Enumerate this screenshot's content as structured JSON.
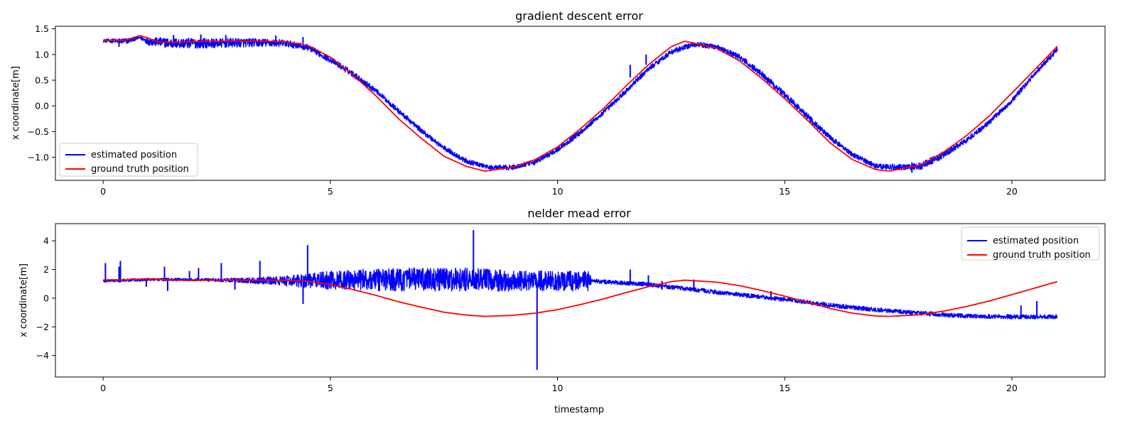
{
  "chart_data": [
    {
      "type": "line",
      "title": "gradient descent error",
      "xlabel": "",
      "ylabel": "x coordinate[m]",
      "xlim": [
        -1.05,
        22.05
      ],
      "ylim": [
        -1.45,
        1.55
      ],
      "xticks": [
        0,
        5,
        10,
        15,
        20
      ],
      "yticks": [
        1.5,
        1.0,
        0.5,
        0.0,
        -0.5,
        -1.0
      ],
      "ytick_labels": [
        "1.5",
        "1.0",
        "0.5",
        "0.0",
        "−0.5",
        "−1.0"
      ],
      "grid": false,
      "legend": {
        "placement": "lower-left",
        "entries": [
          "estimated position",
          "ground truth position"
        ]
      },
      "colors": {
        "estimated": "#0000ff",
        "truth": "#ff0000"
      },
      "series": [
        {
          "name": "estimated position",
          "color": "#0000ff",
          "x": [
            0,
            0.5,
            0.8,
            1.0,
            1.5,
            2.0,
            2.5,
            3.0,
            3.5,
            4.0,
            4.5,
            5.0,
            5.5,
            6.0,
            6.5,
            7.0,
            7.5,
            8.0,
            8.5,
            9.0,
            9.5,
            10.0,
            10.5,
            11.0,
            11.5,
            12.0,
            12.5,
            13.0,
            13.5,
            14.0,
            14.5,
            15.0,
            15.5,
            16.0,
            16.5,
            17.0,
            17.5,
            18.0,
            18.5,
            19.0,
            19.5,
            20.0,
            20.5,
            21.0
          ],
          "y": [
            1.27,
            1.26,
            1.33,
            1.26,
            1.22,
            1.22,
            1.22,
            1.23,
            1.23,
            1.22,
            1.14,
            0.9,
            0.62,
            0.3,
            -0.1,
            -0.48,
            -0.82,
            -1.08,
            -1.2,
            -1.2,
            -1.1,
            -0.85,
            -0.52,
            -0.14,
            0.28,
            0.72,
            1.05,
            1.2,
            1.15,
            0.95,
            0.62,
            0.22,
            -0.2,
            -0.62,
            -0.95,
            -1.17,
            -1.2,
            -1.17,
            -0.95,
            -0.67,
            -0.32,
            0.1,
            0.62,
            1.1
          ],
          "noise": [
            0.03,
            0.06,
            0.03,
            0.08,
            0.1,
            0.1,
            0.09,
            0.09,
            0.08,
            0.07,
            0.06,
            0.06,
            0.06,
            0.05,
            0.05,
            0.05,
            0.05,
            0.05,
            0.04,
            0.05,
            0.05,
            0.05,
            0.05,
            0.05,
            0.05,
            0.05,
            0.05,
            0.05,
            0.05,
            0.06,
            0.06,
            0.06,
            0.06,
            0.05,
            0.05,
            0.05,
            0.06,
            0.07,
            0.07,
            0.05,
            0.05,
            0.05,
            0.05,
            0.05
          ]
        },
        {
          "name": "ground truth position",
          "color": "#ff0000",
          "x": [
            0,
            0.5,
            0.65,
            0.8,
            1.0,
            1.2,
            1.5,
            2.0,
            2.5,
            3.0,
            3.5,
            4.0,
            4.5,
            5.0,
            5.5,
            6.0,
            6.5,
            7.0,
            7.5,
            8.0,
            8.4,
            9.0,
            9.5,
            10.0,
            10.5,
            11.0,
            11.5,
            12.0,
            12.5,
            12.8,
            13.5,
            14.0,
            14.5,
            15.0,
            15.5,
            16.0,
            16.5,
            17.0,
            17.3,
            18.0,
            18.5,
            19.0,
            19.5,
            20.0,
            20.5,
            21.0
          ],
          "y": [
            1.27,
            1.28,
            1.32,
            1.37,
            1.32,
            1.24,
            1.24,
            1.25,
            1.26,
            1.26,
            1.26,
            1.25,
            1.18,
            0.95,
            0.6,
            0.2,
            -0.25,
            -0.63,
            -0.98,
            -1.18,
            -1.27,
            -1.2,
            -1.05,
            -0.8,
            -0.45,
            -0.06,
            0.38,
            0.8,
            1.15,
            1.26,
            1.12,
            0.88,
            0.53,
            0.14,
            -0.28,
            -0.72,
            -1.05,
            -1.24,
            -1.27,
            -1.15,
            -0.9,
            -0.58,
            -0.2,
            0.25,
            0.7,
            1.16
          ]
        }
      ],
      "spikes": [
        {
          "x": 0.35,
          "ylow": 1.15,
          "yhigh": 1.3
        },
        {
          "x": 1.55,
          "ylow": 1.22,
          "yhigh": 1.38
        },
        {
          "x": 2.15,
          "ylow": 1.22,
          "yhigh": 1.39
        },
        {
          "x": 2.7,
          "ylow": 1.2,
          "yhigh": 1.38
        },
        {
          "x": 3.8,
          "ylow": 1.22,
          "yhigh": 1.37
        },
        {
          "x": 4.4,
          "ylow": 1.22,
          "yhigh": 1.34
        },
        {
          "x": 11.6,
          "ylow": 0.55,
          "yhigh": 0.8
        },
        {
          "x": 11.95,
          "ylow": 0.8,
          "yhigh": 1.0
        },
        {
          "x": 17.8,
          "ylow": -1.3,
          "yhigh": -1.1
        }
      ]
    },
    {
      "type": "line",
      "title": "nelder mead error",
      "xlabel": "timestamp",
      "ylabel": "x coordinate[m]",
      "xlim": [
        -1.05,
        22.05
      ],
      "ylim": [
        -5.5,
        5.2
      ],
      "xticks": [
        0,
        5,
        10,
        15,
        20
      ],
      "yticks": [
        4,
        2,
        0,
        -2,
        -4
      ],
      "ytick_labels": [
        "4",
        "2",
        "0",
        "−2",
        "−4"
      ],
      "grid": false,
      "legend": {
        "placement": "upper-right",
        "entries": [
          "estimated position",
          "ground truth position"
        ]
      },
      "colors": {
        "estimated": "#0000ff",
        "truth": "#ff0000"
      },
      "series": [
        {
          "name": "estimated position",
          "color": "#0000ff",
          "x": [
            0,
            1,
            2,
            3,
            4,
            5,
            6,
            7,
            8,
            9,
            10,
            10.7,
            10.75,
            11,
            12,
            13,
            14,
            15,
            16,
            17,
            18,
            19,
            20,
            21
          ],
          "y": [
            1.2,
            1.3,
            1.3,
            1.25,
            1.2,
            1.25,
            1.3,
            1.3,
            1.3,
            1.2,
            1.2,
            1.2,
            1.2,
            1.15,
            0.95,
            0.6,
            0.25,
            -0.1,
            -0.5,
            -0.8,
            -1.05,
            -1.25,
            -1.3,
            -1.3
          ],
          "noise": [
            0.1,
            0.1,
            0.1,
            0.15,
            0.35,
            0.65,
            0.8,
            0.8,
            0.8,
            0.75,
            0.7,
            0.7,
            0.15,
            0.15,
            0.15,
            0.15,
            0.15,
            0.15,
            0.15,
            0.15,
            0.15,
            0.15,
            0.15,
            0.15
          ]
        },
        {
          "name": "ground truth position",
          "color": "#ff0000",
          "x": [
            0,
            0.5,
            1,
            1.5,
            2,
            2.5,
            3,
            3.5,
            4,
            4.5,
            5,
            5.5,
            6,
            6.5,
            7,
            7.5,
            8,
            8.4,
            9,
            9.5,
            10,
            10.5,
            11,
            11.5,
            12,
            12.5,
            12.8,
            13.5,
            14,
            14.5,
            15,
            15.5,
            16,
            16.5,
            17,
            17.3,
            18,
            18.5,
            19,
            19.5,
            20,
            20.5,
            21
          ],
          "y": [
            1.27,
            1.28,
            1.36,
            1.25,
            1.25,
            1.26,
            1.26,
            1.26,
            1.25,
            1.18,
            0.95,
            0.6,
            0.2,
            -0.25,
            -0.63,
            -0.98,
            -1.18,
            -1.27,
            -1.2,
            -1.05,
            -0.8,
            -0.45,
            -0.06,
            0.38,
            0.8,
            1.15,
            1.26,
            1.12,
            0.88,
            0.53,
            0.14,
            -0.28,
            -0.72,
            -1.05,
            -1.24,
            -1.27,
            -1.15,
            -0.9,
            -0.58,
            -0.2,
            0.25,
            0.7,
            1.16
          ]
        }
      ],
      "spikes": [
        {
          "x": 0.05,
          "ylow": 1.1,
          "yhigh": 2.45
        },
        {
          "x": 0.35,
          "ylow": 1.1,
          "yhigh": 2.2
        },
        {
          "x": 0.38,
          "ylow": 1.1,
          "yhigh": 2.6
        },
        {
          "x": 0.95,
          "ylow": 0.8,
          "yhigh": 1.3
        },
        {
          "x": 1.35,
          "ylow": 1.2,
          "yhigh": 2.2
        },
        {
          "x": 1.42,
          "ylow": 0.5,
          "yhigh": 1.2
        },
        {
          "x": 1.9,
          "ylow": 1.2,
          "yhigh": 1.9
        },
        {
          "x": 2.1,
          "ylow": 1.2,
          "yhigh": 2.1
        },
        {
          "x": 2.6,
          "ylow": 1.2,
          "yhigh": 2.45
        },
        {
          "x": 2.9,
          "ylow": 0.6,
          "yhigh": 1.2
        },
        {
          "x": 3.45,
          "ylow": 1.2,
          "yhigh": 2.6
        },
        {
          "x": 4.4,
          "ylow": -0.4,
          "yhigh": 1.2
        },
        {
          "x": 4.5,
          "ylow": 1.2,
          "yhigh": 3.7
        },
        {
          "x": 8.15,
          "ylow": 1.4,
          "yhigh": 4.75
        },
        {
          "x": 9.55,
          "ylow": -5.0,
          "yhigh": 1.0
        },
        {
          "x": 11.6,
          "ylow": 1.0,
          "yhigh": 2.0
        },
        {
          "x": 12.0,
          "ylow": 0.9,
          "yhigh": 1.6
        },
        {
          "x": 12.3,
          "ylow": 0.6,
          "yhigh": 1.2
        },
        {
          "x": 13.0,
          "ylow": 0.5,
          "yhigh": 1.3
        },
        {
          "x": 14.7,
          "ylow": 0.0,
          "yhigh": 0.5
        },
        {
          "x": 20.2,
          "ylow": -1.3,
          "yhigh": -0.5
        },
        {
          "x": 20.55,
          "ylow": -1.3,
          "yhigh": -0.2
        }
      ]
    }
  ]
}
